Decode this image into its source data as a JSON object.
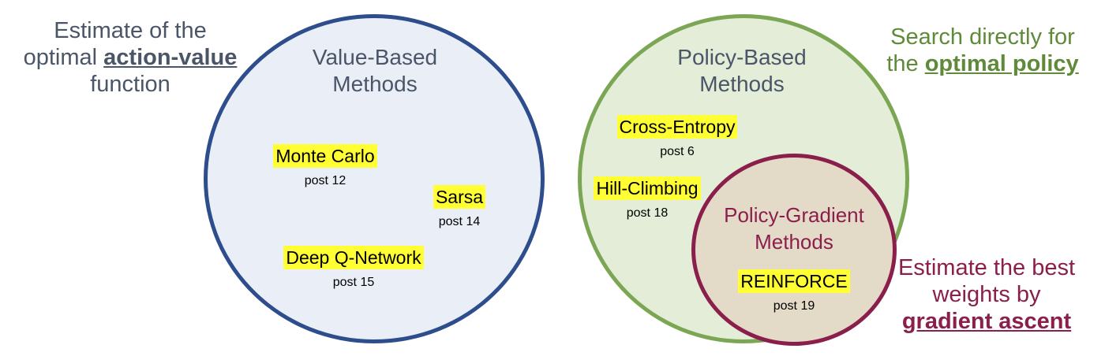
{
  "left_note": {
    "line1": "Estimate of the",
    "line2_prefix": "optimal ",
    "line2_bold": "action-value",
    "line3": "function"
  },
  "right_top_note": {
    "line1": "Search directly for",
    "line2_prefix": "the ",
    "line2_bold": "optimal policy"
  },
  "right_bottom_note": {
    "line1": "Estimate the best",
    "line2": "weights by",
    "line3_bold": "gradient ascent"
  },
  "value_based": {
    "title_line1": "Value-Based",
    "title_line2": "Methods",
    "methods": [
      {
        "name": "Monte Carlo",
        "post": "post 12"
      },
      {
        "name": "Sarsa",
        "post": "post 14"
      },
      {
        "name": "Deep Q-Network",
        "post": "post 15"
      }
    ]
  },
  "policy_based": {
    "title_line1": "Policy-Based",
    "title_line2": "Methods",
    "methods": [
      {
        "name": "Cross-Entropy",
        "post": "post 6"
      },
      {
        "name": "Hill-Climbing",
        "post": "post 18"
      }
    ]
  },
  "policy_gradient": {
    "title_line1": "Policy-Gradient",
    "title_line2": "Methods",
    "methods": [
      {
        "name": "REINFORCE",
        "post": "post 19"
      }
    ]
  },
  "colors": {
    "value_border": "#2e4d8c",
    "value_fill": "#eaeff7",
    "policy_border": "#7ba755",
    "policy_fill": "#e3edd8",
    "pg_border": "#8b1f4c",
    "pg_fill": "#e4dac8",
    "highlight": "#ffff33"
  }
}
